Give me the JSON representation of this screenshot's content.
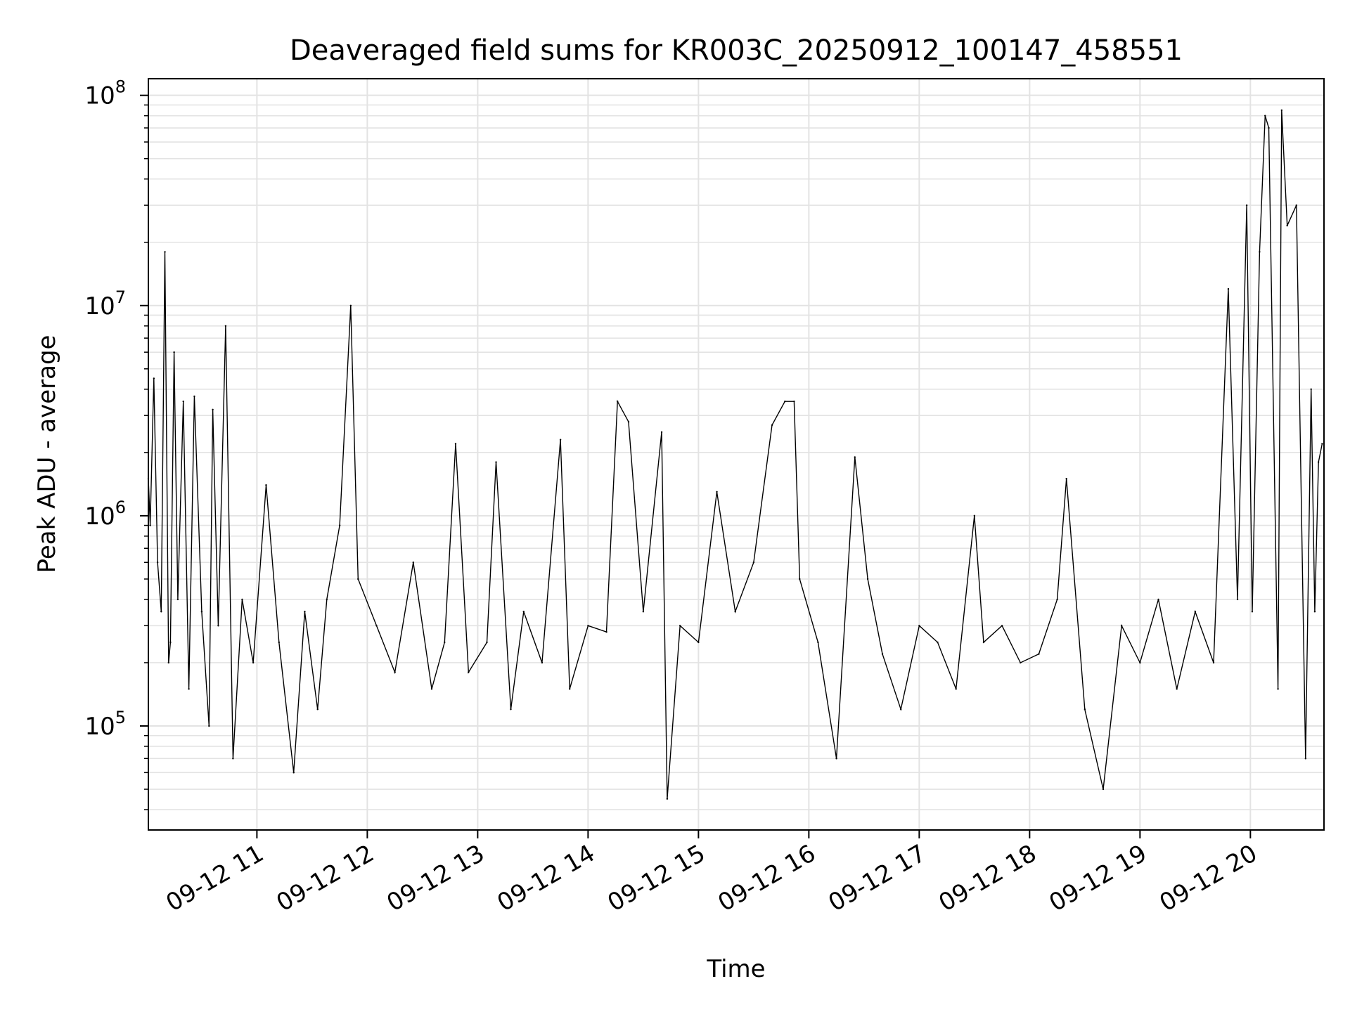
{
  "chart_data": {
    "type": "line",
    "title": "Deaveraged field sums for KR003C_20250912_100147_458551",
    "xlabel": "Time",
    "ylabel": "Peak ADU - average",
    "y_scale": "log",
    "ylim": [
      32000,
      120000000
    ],
    "xlim": [
      "2025-09-12 10:01",
      "2025-09-12 20:40"
    ],
    "grid": true,
    "legend": "none",
    "line_color": "#000000",
    "grid_color": "#e3e3e3",
    "x_ticks": [
      {
        "value": "2025-09-12 11:00",
        "label": "09-12 11"
      },
      {
        "value": "2025-09-12 12:00",
        "label": "09-12 12"
      },
      {
        "value": "2025-09-12 13:00",
        "label": "09-12 13"
      },
      {
        "value": "2025-09-12 14:00",
        "label": "09-12 14"
      },
      {
        "value": "2025-09-12 15:00",
        "label": "09-12 15"
      },
      {
        "value": "2025-09-12 16:00",
        "label": "09-12 16"
      },
      {
        "value": "2025-09-12 17:00",
        "label": "09-12 17"
      },
      {
        "value": "2025-09-12 18:00",
        "label": "09-12 18"
      },
      {
        "value": "2025-09-12 19:00",
        "label": "09-12 19"
      },
      {
        "value": "2025-09-12 20:00",
        "label": "09-12 20"
      }
    ],
    "y_ticks": [
      {
        "value": 100000,
        "base": "10",
        "exp": "5"
      },
      {
        "value": 1000000,
        "base": "10",
        "exp": "6"
      },
      {
        "value": 10000000,
        "base": "10",
        "exp": "7"
      },
      {
        "value": 100000000,
        "base": "10",
        "exp": "8"
      }
    ],
    "series": [
      {
        "x": [
          "2025-09-12 10:01",
          "2025-09-12 10:02",
          "2025-09-12 10:04",
          "2025-09-12 10:06",
          "2025-09-12 10:08",
          "2025-09-12 10:10",
          "2025-09-12 10:12",
          "2025-09-12 10:13",
          "2025-09-12 10:15",
          "2025-09-12 10:17",
          "2025-09-12 10:20",
          "2025-09-12 10:23",
          "2025-09-12 10:26",
          "2025-09-12 10:30",
          "2025-09-12 10:34",
          "2025-09-12 10:36",
          "2025-09-12 10:39",
          "2025-09-12 10:43",
          "2025-09-12 10:47",
          "2025-09-12 10:52",
          "2025-09-12 10:58",
          "2025-09-12 11:05",
          "2025-09-12 11:12",
          "2025-09-12 11:20",
          "2025-09-12 11:26",
          "2025-09-12 11:33",
          "2025-09-12 11:38",
          "2025-09-12 11:45",
          "2025-09-12 11:51",
          "2025-09-12 11:55",
          "2025-09-12 12:05",
          "2025-09-12 12:15",
          "2025-09-12 12:25",
          "2025-09-12 12:35",
          "2025-09-12 12:42",
          "2025-09-12 12:48",
          "2025-09-12 12:55",
          "2025-09-12 13:05",
          "2025-09-12 13:10",
          "2025-09-12 13:18",
          "2025-09-12 13:25",
          "2025-09-12 13:35",
          "2025-09-12 13:45",
          "2025-09-12 13:50",
          "2025-09-12 14:00",
          "2025-09-12 14:10",
          "2025-09-12 14:16",
          "2025-09-12 14:22",
          "2025-09-12 14:30",
          "2025-09-12 14:40",
          "2025-09-12 14:43",
          "2025-09-12 14:50",
          "2025-09-12 15:00",
          "2025-09-12 15:10",
          "2025-09-12 15:20",
          "2025-09-12 15:30",
          "2025-09-12 15:40",
          "2025-09-12 15:47",
          "2025-09-12 15:52",
          "2025-09-12 15:55",
          "2025-09-12 16:05",
          "2025-09-12 16:15",
          "2025-09-12 16:25",
          "2025-09-12 16:32",
          "2025-09-12 16:40",
          "2025-09-12 16:50",
          "2025-09-12 17:00",
          "2025-09-12 17:10",
          "2025-09-12 17:20",
          "2025-09-12 17:30",
          "2025-09-12 17:35",
          "2025-09-12 17:45",
          "2025-09-12 17:55",
          "2025-09-12 18:05",
          "2025-09-12 18:15",
          "2025-09-12 18:20",
          "2025-09-12 18:30",
          "2025-09-12 18:40",
          "2025-09-12 18:50",
          "2025-09-12 19:00",
          "2025-09-12 19:10",
          "2025-09-12 19:20",
          "2025-09-12 19:30",
          "2025-09-12 19:40",
          "2025-09-12 19:48",
          "2025-09-12 19:53",
          "2025-09-12 19:58",
          "2025-09-12 20:01",
          "2025-09-12 20:05",
          "2025-09-12 20:08",
          "2025-09-12 20:10",
          "2025-09-12 20:15",
          "2025-09-12 20:17",
          "2025-09-12 20:20",
          "2025-09-12 20:25",
          "2025-09-12 20:30",
          "2025-09-12 20:33",
          "2025-09-12 20:35",
          "2025-09-12 20:37",
          "2025-09-12 20:39"
        ],
        "y": [
          1500000,
          900000,
          4500000,
          600000,
          350000,
          18000000,
          200000,
          250000,
          6000000,
          400000,
          3500000,
          150000,
          3700000,
          350000,
          100000,
          3200000,
          300000,
          8000000,
          70000,
          400000,
          200000,
          1400000,
          250000,
          60000,
          350000,
          120000,
          400000,
          900000,
          10000000,
          500000,
          300000,
          180000,
          600000,
          150000,
          250000,
          2200000,
          180000,
          250000,
          1800000,
          120000,
          350000,
          200000,
          2300000,
          150000,
          300000,
          280000,
          3500000,
          2800000,
          350000,
          2500000,
          45000,
          300000,
          250000,
          1300000,
          350000,
          600000,
          2700000,
          3500000,
          3500000,
          500000,
          250000,
          70000,
          1900000,
          500000,
          220000,
          120000,
          300000,
          250000,
          150000,
          1000000,
          250000,
          300000,
          200000,
          220000,
          400000,
          1500000,
          120000,
          50000,
          300000,
          200000,
          400000,
          150000,
          350000,
          200000,
          12000000,
          400000,
          30000000,
          350000,
          18000000,
          80000000,
          70000000,
          150000,
          85000000,
          24000000,
          30000000,
          70000,
          4000000,
          350000,
          1800000,
          2200000
        ]
      }
    ]
  }
}
